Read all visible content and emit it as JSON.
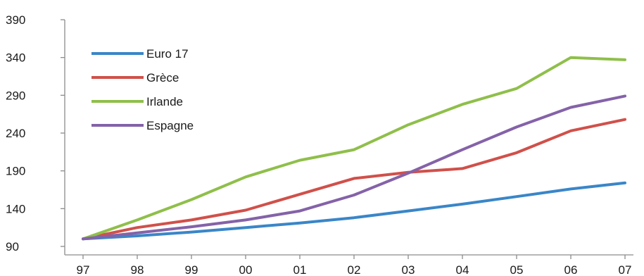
{
  "chart_data": {
    "type": "line",
    "title": "",
    "xlabel": "",
    "ylabel": "",
    "categories": [
      "97",
      "98",
      "99",
      "00",
      "01",
      "02",
      "03",
      "04",
      "05",
      "06",
      "07"
    ],
    "y_ticks": [
      "90",
      "140",
      "190",
      "240",
      "290",
      "340",
      "390"
    ],
    "ylim": [
      90,
      390
    ],
    "grid": false,
    "legend_position": "top-left",
    "series": [
      {
        "name": "Euro 17",
        "color": "#3a86c8",
        "values": [
          100,
          104,
          109,
          115,
          121,
          128,
          137,
          146,
          156,
          166,
          174
        ]
      },
      {
        "name": "Grèce",
        "color": "#d0504a",
        "values": [
          100,
          115,
          125,
          138,
          159,
          180,
          188,
          193,
          214,
          243,
          258
        ]
      },
      {
        "name": "Irlande",
        "color": "#8fbf4a",
        "values": [
          100,
          125,
          152,
          182,
          204,
          218,
          251,
          278,
          299,
          340,
          337
        ]
      },
      {
        "name": "Espagne",
        "color": "#8462a8",
        "values": [
          100,
          108,
          116,
          125,
          137,
          158,
          187,
          218,
          248,
          274,
          289
        ]
      }
    ]
  }
}
